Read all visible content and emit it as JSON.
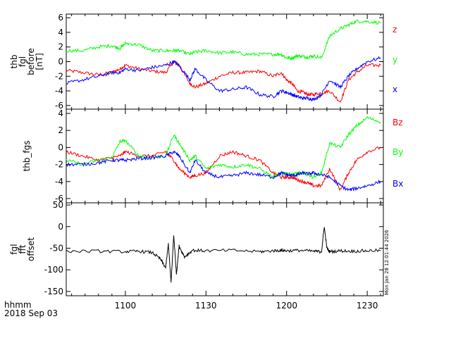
{
  "x_axis": {
    "label": "hhmm",
    "date": "2018 Sep 03",
    "range": [
      "10:38",
      "12:36"
    ],
    "ticks": [
      "1100",
      "1130",
      "1200",
      "1230"
    ],
    "tick_minutes": [
      660,
      690,
      720,
      750
    ]
  },
  "timestamp": "Mon Jan 28 12:01:44 2026",
  "chart_data": [
    {
      "type": "line",
      "ylabel_lines": [
        "thb",
        "fgl",
        "before",
        "[nT]"
      ],
      "ylim": [
        -6.5,
        6.5
      ],
      "yticks": [
        -6,
        -4,
        -2,
        0,
        2,
        4,
        6
      ],
      "x": [
        638,
        644,
        650,
        655,
        658,
        660,
        665,
        670,
        675,
        678,
        680,
        684,
        686,
        690,
        695,
        700,
        705,
        710,
        715,
        718,
        720,
        722,
        724,
        726,
        728,
        730,
        733,
        736,
        740,
        743,
        746,
        750,
        755
      ],
      "series": [
        {
          "name": "z",
          "color": "#ff0000",
          "values": [
            -1.2,
            -1.5,
            -1.8,
            -1.5,
            -1.0,
            -0.5,
            -1.0,
            -1.3,
            -1.5,
            0.0,
            -0.5,
            -3.0,
            -3.5,
            -3.0,
            -2.0,
            -1.5,
            -1.5,
            -1.3,
            -2.0,
            -1.5,
            -2.5,
            -3.0,
            -4.0,
            -4.2,
            -4.5,
            -4.5,
            -4.3,
            -4.0,
            -5.5,
            -2.5,
            -1.5,
            -0.5,
            -0.5
          ]
        },
        {
          "name": "y",
          "color": "#00ff00",
          "values": [
            1.5,
            1.5,
            2.0,
            2.2,
            1.8,
            2.5,
            2.3,
            1.5,
            1.5,
            1.5,
            1.5,
            1.0,
            1.3,
            1.5,
            1.2,
            1.3,
            1.0,
            1.0,
            1.0,
            1.0,
            0.5,
            0.5,
            0.8,
            0.7,
            0.6,
            0.8,
            0.5,
            3.5,
            4.5,
            5.0,
            5.5,
            5.5,
            5.3
          ]
        },
        {
          "name": "x",
          "color": "#0000ff",
          "values": [
            -3.0,
            -2.5,
            -2.0,
            -1.5,
            -1.5,
            -1.0,
            -1.2,
            -0.8,
            -0.5,
            0.0,
            -0.5,
            -2.5,
            -1.0,
            -2.5,
            -4.0,
            -3.8,
            -3.5,
            -4.5,
            -4.8,
            -4.0,
            -4.2,
            -4.5,
            -4.8,
            -5.0,
            -5.0,
            -5.2,
            -4.5,
            -2.5,
            -3.5,
            -2.0,
            -1.0,
            0.0,
            0.5
          ]
        }
      ]
    },
    {
      "type": "line",
      "ylabel_lines": [
        "thb_fgs"
      ],
      "ylim": [
        -6.5,
        4.5
      ],
      "yticks": [
        -6,
        -4,
        -2,
        0,
        2,
        4
      ],
      "x": [
        638,
        644,
        650,
        655,
        658,
        660,
        665,
        670,
        675,
        678,
        680,
        684,
        686,
        690,
        695,
        700,
        705,
        710,
        715,
        718,
        720,
        722,
        724,
        726,
        728,
        730,
        733,
        736,
        740,
        743,
        746,
        750,
        755
      ],
      "series": [
        {
          "name": "Bz",
          "color": "#ff0000",
          "values": [
            -0.5,
            -1.0,
            -1.5,
            -1.2,
            -1.0,
            -0.5,
            -1.0,
            -1.0,
            -0.5,
            -1.5,
            -2.5,
            -3.5,
            -3.3,
            -3.0,
            -1.0,
            -0.5,
            -1.0,
            -1.5,
            -3.0,
            -3.5,
            -3.5,
            -3.5,
            -3.8,
            -4.0,
            -4.2,
            -4.5,
            -4.5,
            -2.5,
            -5.0,
            -3.0,
            -1.5,
            -0.5,
            0.0
          ]
        },
        {
          "name": "By",
          "color": "#00ff00",
          "values": [
            -1.5,
            -2.0,
            -1.5,
            -1.2,
            0.7,
            0.8,
            -1.0,
            -1.2,
            -1.0,
            1.5,
            0.5,
            -1.5,
            -1.0,
            -2.5,
            -2.0,
            -2.3,
            -2.0,
            -2.5,
            -3.5,
            -3.0,
            -3.0,
            -3.2,
            -3.0,
            -3.0,
            -3.2,
            -3.5,
            -3.0,
            0.5,
            0.0,
            1.5,
            2.5,
            3.5,
            3.0
          ]
        },
        {
          "name": "Bx",
          "color": "#0000ff",
          "values": [
            -2.0,
            -2.0,
            -1.8,
            -1.5,
            -1.5,
            -1.5,
            -1.3,
            -1.2,
            -1.0,
            -0.5,
            -1.0,
            -3.0,
            -1.5,
            -3.0,
            -3.5,
            -3.3,
            -3.0,
            -3.2,
            -3.5,
            -3.0,
            -3.2,
            -3.3,
            -3.2,
            -3.0,
            -3.1,
            -3.0,
            -3.2,
            -3.5,
            -4.5,
            -5.0,
            -4.8,
            -4.5,
            -4.0
          ]
        }
      ]
    },
    {
      "type": "line",
      "ylabel_lines": [
        "fgl",
        "fft",
        "offset"
      ],
      "ylim": [
        -160,
        55
      ],
      "yticks": [
        -150,
        -100,
        -50,
        0,
        50
      ],
      "x": [
        638,
        650,
        660,
        665,
        670,
        673,
        675,
        676,
        677,
        678,
        679,
        680,
        682,
        685,
        690,
        700,
        710,
        715,
        718,
        720,
        725,
        730,
        733,
        734,
        735,
        736,
        740,
        745,
        750,
        755
      ],
      "series": [
        {
          "name": "offset",
          "color": "#000000",
          "values": [
            -57,
            -57,
            -58,
            -57,
            -60,
            -75,
            -95,
            -40,
            -130,
            -20,
            -110,
            -45,
            -70,
            -55,
            -56,
            -55,
            -58,
            -56,
            -55,
            -56,
            -55,
            -57,
            -58,
            0,
            -50,
            -58,
            -56,
            -57,
            -56,
            -55
          ]
        }
      ]
    }
  ]
}
